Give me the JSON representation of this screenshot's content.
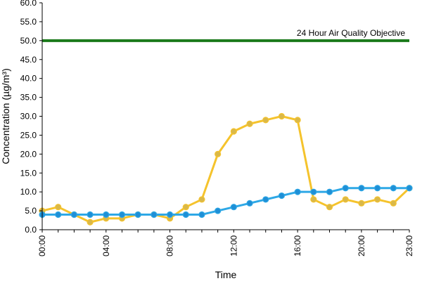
{
  "chart_data": {
    "type": "line",
    "title": "",
    "xlabel": "Time",
    "ylabel": "Concentration (µg/m³)",
    "ylim": [
      0,
      60
    ],
    "y_ticks": [
      "0.0",
      "5.0",
      "10.0",
      "15.0",
      "20.0",
      "25.0",
      "30.0",
      "35.0",
      "40.0",
      "45.0",
      "50.0",
      "55.0",
      "60.0"
    ],
    "x_range": [
      0,
      23
    ],
    "x_tick_hours": [
      0,
      4,
      8,
      12,
      16,
      20,
      23
    ],
    "x_tick_labels": [
      "00:00",
      "04:00",
      "08:00",
      "12:00",
      "16:00",
      "20:00",
      "23:00"
    ],
    "x": [
      0,
      1,
      2,
      3,
      4,
      5,
      6,
      7,
      8,
      9,
      10,
      11,
      12,
      13,
      14,
      15,
      16,
      17,
      18,
      19,
      20,
      21,
      22,
      23
    ],
    "series": [
      {
        "color": "#f5c32c",
        "marker_fill": "#d9b84a",
        "values": [
          5,
          6,
          4,
          2,
          3,
          3,
          4,
          4,
          3,
          6,
          8,
          20,
          26,
          28,
          29,
          30,
          29,
          8,
          6,
          8,
          7,
          8,
          7,
          11
        ]
      },
      {
        "color": "#2ea8e6",
        "marker_fill": "#1f8fd6",
        "values": [
          4,
          4,
          4,
          4,
          4,
          4,
          4,
          4,
          4,
          4,
          4,
          5,
          6,
          7,
          8,
          9,
          10,
          10,
          10,
          11,
          11,
          11,
          11,
          11
        ]
      }
    ],
    "reference_line": {
      "value": 50,
      "label": "24 Hour Air Quality Objective",
      "color": "#1a7a1a"
    },
    "grid": false,
    "legend": "none"
  }
}
